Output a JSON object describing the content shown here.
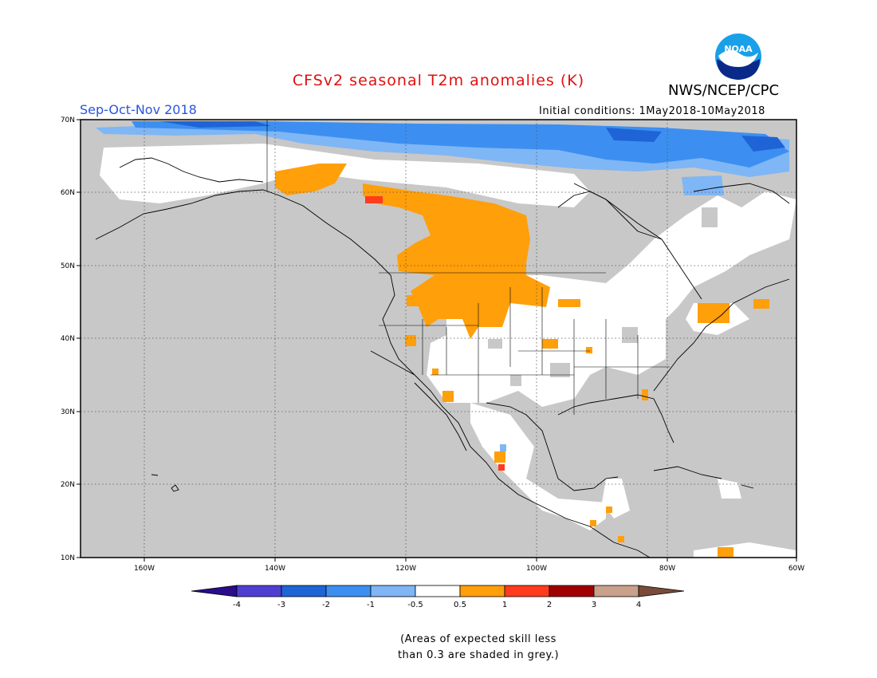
{
  "header": {
    "title": "CFSv2 seasonal T2m anomalies (K)",
    "agency": "NWS/NCEP/CPC",
    "logo_text": "NOAA",
    "season": "Sep-Oct-Nov 2018",
    "initial_conditions": "Initial conditions: 1May2018-10May2018"
  },
  "map": {
    "region": "North America",
    "lon_range": [
      -172,
      -60
    ],
    "lat_range": [
      10,
      70
    ],
    "lat_labels": [
      "10N",
      "20N",
      "30N",
      "40N",
      "50N",
      "60N",
      "70N"
    ],
    "lon_labels": [
      "160W",
      "140W",
      "120W",
      "100W",
      "80W",
      "60W"
    ],
    "colors": {
      "grey_low_skill": "#c8c8c8",
      "neutral": "#ffffff",
      "cool_1": "#7fb6f5",
      "cool_2": "#3c8ff0",
      "cool_3": "#1e64d6",
      "warm_1": "#ff9f0a",
      "warm_2": "#ff3c1e"
    }
  },
  "legend": {
    "labels": [
      "-4",
      "-3",
      "-2",
      "-1",
      "-0.5",
      "0.5",
      "1",
      "2",
      "3",
      "4"
    ],
    "colors": [
      "#2a0c8c",
      "#4f3fd0",
      "#1e64d6",
      "#3c8ff0",
      "#7fb6f5",
      "#ffffff",
      "#ff9f0a",
      "#ff3c1e",
      "#a00000",
      "#c8a08c",
      "#7a4a3a"
    ]
  },
  "footnote": {
    "line1": "(Areas of expected skill less",
    "line2": "than 0.3 are shaded in grey.)"
  }
}
